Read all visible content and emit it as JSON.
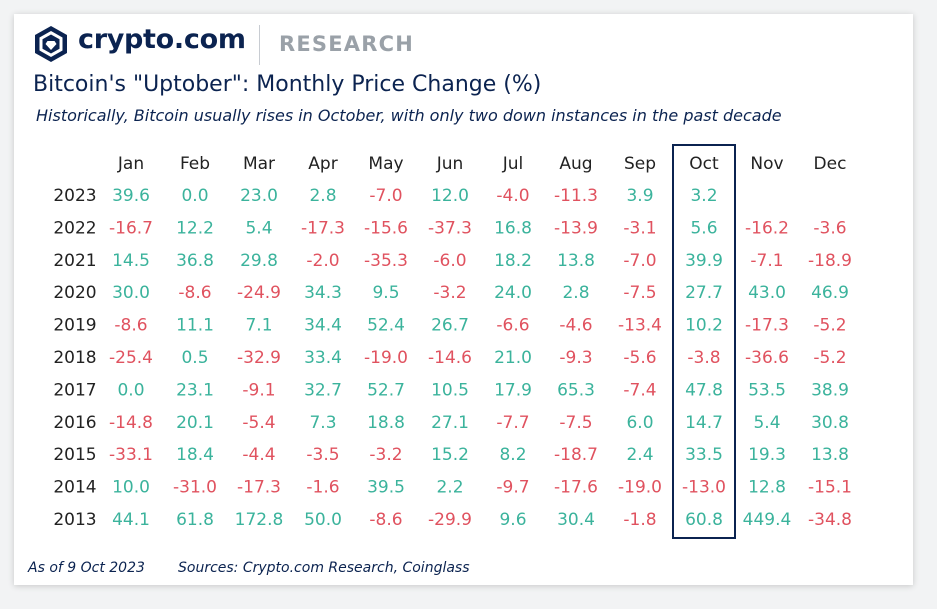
{
  "brand": {
    "name": "crypto.com",
    "section": "RESEARCH",
    "logo_icon": "crypto-com-shield-logo-icon"
  },
  "header": {
    "title": "Bitcoin's \"Uptober\":  Monthly Price Change (%)",
    "subtitle": "Historically, Bitcoin usually rises in October, with only two down instances in the past decade"
  },
  "footer": {
    "as_of": "As of 9 Oct 2023",
    "sources": "Sources: Crypto.com Research, Coinglass"
  },
  "colors": {
    "positive": "#3bb39c",
    "negative": "#e0525f",
    "text": "#222222",
    "navy": "#0b2350",
    "highlight_border": "#0b2350"
  },
  "chart_data": {
    "type": "table",
    "title": "Bitcoin's \"Uptober\":  Monthly Price Change (%)",
    "columns": [
      "Jan",
      "Feb",
      "Mar",
      "Apr",
      "May",
      "Jun",
      "Jul",
      "Aug",
      "Sep",
      "Oct",
      "Nov",
      "Dec"
    ],
    "highlight_column": "Oct",
    "rows": [
      {
        "year": "2023",
        "values": [
          "39.6",
          "0.0",
          "23.0",
          "2.8",
          "-7.0",
          "12.0",
          "-4.0",
          "-11.3",
          "3.9",
          "3.2",
          null,
          null
        ]
      },
      {
        "year": "2022",
        "values": [
          "-16.7",
          "12.2",
          "5.4",
          "-17.3",
          "-15.6",
          "-37.3",
          "16.8",
          "-13.9",
          "-3.1",
          "5.6",
          "-16.2",
          "-3.6"
        ]
      },
      {
        "year": "2021",
        "values": [
          "14.5",
          "36.8",
          "29.8",
          "-2.0",
          "-35.3",
          "-6.0",
          "18.2",
          "13.8",
          "-7.0",
          "39.9",
          "-7.1",
          "-18.9"
        ]
      },
      {
        "year": "2020",
        "values": [
          "30.0",
          "-8.6",
          "-24.9",
          "34.3",
          "9.5",
          "-3.2",
          "24.0",
          "2.8",
          "-7.5",
          "27.7",
          "43.0",
          "46.9"
        ]
      },
      {
        "year": "2019",
        "values": [
          "-8.6",
          "11.1",
          "7.1",
          "34.4",
          "52.4",
          "26.7",
          "-6.6",
          "-4.6",
          "-13.4",
          "10.2",
          "-17.3",
          "-5.2"
        ]
      },
      {
        "year": "2018",
        "values": [
          "-25.4",
          "0.5",
          "-32.9",
          "33.4",
          "-19.0",
          "-14.6",
          "21.0",
          "-9.3",
          "-5.6",
          "-3.8",
          "-36.6",
          "-5.2"
        ]
      },
      {
        "year": "2017",
        "values": [
          "0.0",
          "23.1",
          "-9.1",
          "32.7",
          "52.7",
          "10.5",
          "17.9",
          "65.3",
          "-7.4",
          "47.8",
          "53.5",
          "38.9"
        ]
      },
      {
        "year": "2016",
        "values": [
          "-14.8",
          "20.1",
          "-5.4",
          "7.3",
          "18.8",
          "27.1",
          "-7.7",
          "-7.5",
          "6.0",
          "14.7",
          "5.4",
          "30.8"
        ]
      },
      {
        "year": "2015",
        "values": [
          "-33.1",
          "18.4",
          "-4.4",
          "-3.5",
          "-3.2",
          "15.2",
          "8.2",
          "-18.7",
          "2.4",
          "33.5",
          "19.3",
          "13.8"
        ]
      },
      {
        "year": "2014",
        "values": [
          "10.0",
          "-31.0",
          "-17.3",
          "-1.6",
          "39.5",
          "2.2",
          "-9.7",
          "-17.6",
          "-19.0",
          "-13.0",
          "12.8",
          "-15.1"
        ]
      },
      {
        "year": "2013",
        "values": [
          "44.1",
          "61.8",
          "172.8",
          "50.0",
          "-8.6",
          "-29.9",
          "9.6",
          "30.4",
          "-1.8",
          "60.8",
          "449.4",
          "-34.8"
        ]
      }
    ]
  }
}
